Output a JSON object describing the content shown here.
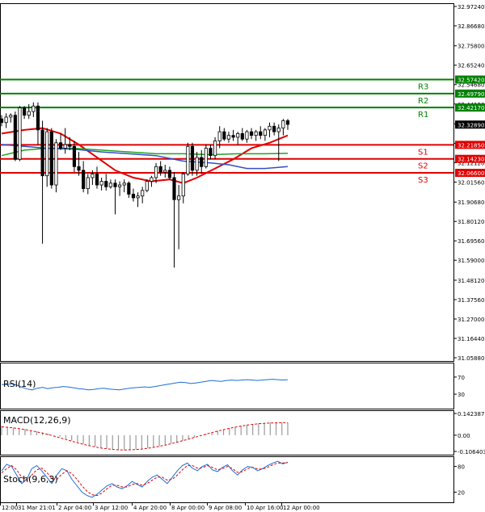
{
  "chart_data": {
    "type": "candlestick",
    "main": {
      "y_ticks": [
        "32.97240",
        "32.86680",
        "32.75800",
        "32.65240",
        "32.54680",
        "32.44120",
        "32.33240",
        "32.22680",
        "32.12120",
        "32.01560",
        "31.90680",
        "31.80120",
        "31.69560",
        "31.59000",
        "31.48120",
        "31.37560",
        "31.27000",
        "31.16440",
        "31.05880"
      ],
      "ylim": [
        31.0588,
        32.9724
      ],
      "x_labels": [
        "12:00",
        "31 Mar 21:01",
        "2 Apr 04:00",
        "3 Apr 12:00",
        "4 Apr 20:00",
        "8 Apr 00:00",
        "9 Apr 08:00",
        "10 Apr 16:00",
        "12 Apr 00:00"
      ],
      "current_price": {
        "value": 32.3289,
        "label": "32.32890",
        "color": "#000000"
      },
      "levels": [
        {
          "name": "R3",
          "value": 32.5742,
          "label": "32.57420",
          "color": "#008000"
        },
        {
          "name": "R2",
          "value": 32.4979,
          "label": "32.49790",
          "color": "#008000"
        },
        {
          "name": "R1",
          "value": 32.4217,
          "label": "32.42170",
          "color": "#008000"
        },
        {
          "name": "S1",
          "value": 32.2185,
          "label": "32.21850",
          "color": "#e00000"
        },
        {
          "name": "S2",
          "value": 32.1423,
          "label": "32.14230",
          "color": "#e00000"
        },
        {
          "name": "S3",
          "value": 32.066,
          "label": "32.06600",
          "color": "#e00000"
        }
      ],
      "candles": [
        {
          "o": 32.36,
          "h": 32.38,
          "l": 32.32,
          "c": 32.34
        },
        {
          "o": 32.34,
          "h": 32.39,
          "l": 32.31,
          "c": 32.37
        },
        {
          "o": 32.37,
          "h": 32.39,
          "l": 32.34,
          "c": 32.38
        },
        {
          "o": 32.38,
          "h": 32.4,
          "l": 32.13,
          "c": 32.14
        },
        {
          "o": 32.14,
          "h": 32.43,
          "l": 32.13,
          "c": 32.42
        },
        {
          "o": 32.42,
          "h": 32.43,
          "l": 32.36,
          "c": 32.38
        },
        {
          "o": 32.38,
          "h": 32.44,
          "l": 32.36,
          "c": 32.4
        },
        {
          "o": 32.4,
          "h": 32.45,
          "l": 32.37,
          "c": 32.43
        },
        {
          "o": 32.43,
          "h": 32.45,
          "l": 32.22,
          "c": 32.3
        },
        {
          "o": 32.3,
          "h": 32.35,
          "l": 31.68,
          "c": 32.05
        },
        {
          "o": 32.05,
          "h": 32.31,
          "l": 31.99,
          "c": 32.29
        },
        {
          "o": 32.29,
          "h": 32.31,
          "l": 31.98,
          "c": 32.0
        },
        {
          "o": 32.0,
          "h": 32.25,
          "l": 31.96,
          "c": 32.23
        },
        {
          "o": 32.23,
          "h": 32.28,
          "l": 32.19,
          "c": 32.2
        },
        {
          "o": 32.2,
          "h": 32.31,
          "l": 32.17,
          "c": 32.22
        },
        {
          "o": 32.22,
          "h": 32.26,
          "l": 32.19,
          "c": 32.21
        },
        {
          "o": 32.21,
          "h": 32.24,
          "l": 32.07,
          "c": 32.1
        },
        {
          "o": 32.1,
          "h": 32.18,
          "l": 32.05,
          "c": 32.08
        },
        {
          "o": 32.08,
          "h": 32.13,
          "l": 31.96,
          "c": 31.98
        },
        {
          "o": 31.98,
          "h": 32.06,
          "l": 31.95,
          "c": 32.04
        },
        {
          "o": 32.04,
          "h": 32.08,
          "l": 32.0,
          "c": 32.06
        },
        {
          "o": 32.06,
          "h": 32.1,
          "l": 31.98,
          "c": 32.0
        },
        {
          "o": 32.0,
          "h": 32.04,
          "l": 31.97,
          "c": 32.02
        },
        {
          "o": 32.02,
          "h": 32.06,
          "l": 31.97,
          "c": 31.99
        },
        {
          "o": 31.99,
          "h": 32.03,
          "l": 31.98,
          "c": 32.01
        },
        {
          "o": 32.01,
          "h": 32.03,
          "l": 31.84,
          "c": 31.99
        },
        {
          "o": 31.99,
          "h": 32.02,
          "l": 31.94,
          "c": 32.0
        },
        {
          "o": 32.0,
          "h": 32.03,
          "l": 31.96,
          "c": 32.01
        },
        {
          "o": 32.01,
          "h": 32.02,
          "l": 31.93,
          "c": 31.95
        },
        {
          "o": 31.95,
          "h": 31.98,
          "l": 31.91,
          "c": 31.93
        },
        {
          "o": 31.93,
          "h": 31.96,
          "l": 31.88,
          "c": 31.94
        },
        {
          "o": 31.94,
          "h": 31.99,
          "l": 31.9,
          "c": 31.97
        },
        {
          "o": 31.97,
          "h": 32.03,
          "l": 31.96,
          "c": 32.02
        },
        {
          "o": 32.02,
          "h": 32.05,
          "l": 31.99,
          "c": 32.04
        },
        {
          "o": 32.04,
          "h": 32.12,
          "l": 32.01,
          "c": 32.1
        },
        {
          "o": 32.1,
          "h": 32.13,
          "l": 32.05,
          "c": 32.07
        },
        {
          "o": 32.07,
          "h": 32.11,
          "l": 32.04,
          "c": 32.08
        },
        {
          "o": 32.08,
          "h": 32.1,
          "l": 32.03,
          "c": 32.04
        },
        {
          "o": 32.04,
          "h": 32.07,
          "l": 31.55,
          "c": 31.92
        },
        {
          "o": 31.92,
          "h": 32.0,
          "l": 31.65,
          "c": 31.94
        },
        {
          "o": 31.94,
          "h": 32.07,
          "l": 31.9,
          "c": 32.06
        },
        {
          "o": 32.06,
          "h": 32.23,
          "l": 32.05,
          "c": 32.21
        },
        {
          "o": 32.21,
          "h": 32.23,
          "l": 32.05,
          "c": 32.08
        },
        {
          "o": 32.08,
          "h": 32.18,
          "l": 32.05,
          "c": 32.15
        },
        {
          "o": 32.15,
          "h": 32.19,
          "l": 32.06,
          "c": 32.1
        },
        {
          "o": 32.1,
          "h": 32.22,
          "l": 32.09,
          "c": 32.2
        },
        {
          "o": 32.2,
          "h": 32.22,
          "l": 32.14,
          "c": 32.16
        },
        {
          "o": 32.16,
          "h": 32.26,
          "l": 32.14,
          "c": 32.24
        },
        {
          "o": 32.24,
          "h": 32.32,
          "l": 32.2,
          "c": 32.29
        },
        {
          "o": 32.29,
          "h": 32.31,
          "l": 32.24,
          "c": 32.25
        },
        {
          "o": 32.25,
          "h": 32.29,
          "l": 32.23,
          "c": 32.27
        },
        {
          "o": 32.27,
          "h": 32.3,
          "l": 32.24,
          "c": 32.26
        },
        {
          "o": 32.26,
          "h": 32.29,
          "l": 32.22,
          "c": 32.28
        },
        {
          "o": 32.28,
          "h": 32.31,
          "l": 32.24,
          "c": 32.25
        },
        {
          "o": 32.25,
          "h": 32.3,
          "l": 32.23,
          "c": 32.29
        },
        {
          "o": 32.29,
          "h": 32.31,
          "l": 32.25,
          "c": 32.27
        },
        {
          "o": 32.27,
          "h": 32.3,
          "l": 32.24,
          "c": 32.29
        },
        {
          "o": 32.29,
          "h": 32.32,
          "l": 32.25,
          "c": 32.27
        },
        {
          "o": 32.27,
          "h": 32.31,
          "l": 32.24,
          "c": 32.3
        },
        {
          "o": 32.3,
          "h": 32.34,
          "l": 32.26,
          "c": 32.32
        },
        {
          "o": 32.32,
          "h": 32.34,
          "l": 32.27,
          "c": 32.29
        },
        {
          "o": 32.29,
          "h": 32.33,
          "l": 32.13,
          "c": 32.31
        },
        {
          "o": 32.31,
          "h": 32.36,
          "l": 32.27,
          "c": 32.35
        },
        {
          "o": 32.35,
          "h": 32.36,
          "l": 32.3,
          "c": 32.33
        }
      ],
      "moving_averages": [
        {
          "name": "red-ma",
          "color": "#e00000",
          "points": [
            [
              0,
              32.28
            ],
            [
              5,
              32.3
            ],
            [
              9,
              32.31
            ],
            [
              13,
              32.28
            ],
            [
              17,
              32.22
            ],
            [
              21,
              32.15
            ],
            [
              25,
              32.08
            ],
            [
              29,
              32.04
            ],
            [
              33,
              32.02
            ],
            [
              37,
              32.03
            ],
            [
              40,
              32.01
            ],
            [
              43,
              32.04
            ],
            [
              47,
              32.09
            ],
            [
              51,
              32.14
            ],
            [
              55,
              32.2
            ],
            [
              59,
              32.23
            ],
            [
              62,
              32.26
            ],
            [
              63,
              32.27
            ]
          ]
        },
        {
          "name": "green-ma",
          "color": "#22a022",
          "points": [
            [
              0,
              32.16
            ],
            [
              5,
              32.19
            ],
            [
              10,
              32.2
            ],
            [
              16,
              32.2
            ],
            [
              22,
              32.19
            ],
            [
              28,
              32.18
            ],
            [
              34,
              32.17
            ],
            [
              40,
              32.17
            ],
            [
              46,
              32.165
            ],
            [
              52,
              32.17
            ],
            [
              58,
              32.17
            ],
            [
              63,
              32.172
            ]
          ]
        },
        {
          "name": "blue-ma",
          "color": "#3050c8",
          "points": [
            [
              0,
              32.22
            ],
            [
              5,
              32.21
            ],
            [
              10,
              32.2
            ],
            [
              16,
              32.195
            ],
            [
              22,
              32.18
            ],
            [
              28,
              32.17
            ],
            [
              34,
              32.16
            ],
            [
              40,
              32.13
            ],
            [
              46,
              32.12
            ],
            [
              50,
              32.11
            ],
            [
              54,
              32.09
            ],
            [
              58,
              32.09
            ],
            [
              63,
              32.1
            ]
          ]
        }
      ]
    },
    "rsi": {
      "label": "RSI(14)",
      "y_ticks": [
        "70",
        "30"
      ],
      "color": "#1e6ed6",
      "values": [
        52,
        53,
        54,
        51,
        46,
        42,
        40,
        44,
        46,
        43,
        45,
        46,
        48,
        47,
        45,
        43,
        42,
        40,
        41,
        43,
        44,
        42,
        41,
        40,
        42,
        44,
        45,
        46,
        47,
        46,
        48,
        50,
        52,
        54,
        56,
        58,
        57,
        55,
        56,
        58,
        60,
        62,
        61,
        60,
        62,
        63,
        62,
        63,
        64,
        63,
        62,
        63,
        64,
        65,
        64,
        63,
        64
      ]
    },
    "macd": {
      "label": "MACD(12,26,9)",
      "y_ticks": [
        "0.142387",
        "0.00",
        "-0.106403"
      ],
      "ylim": [
        -0.106403,
        0.142387
      ],
      "signal_color": "#e00000",
      "histogram": [
        0.06,
        0.055,
        0.05,
        0.045,
        0.04,
        0.032,
        0.025,
        0.018,
        0.01,
        0.0,
        -0.01,
        -0.022,
        -0.035,
        -0.046,
        -0.056,
        -0.066,
        -0.075,
        -0.082,
        -0.088,
        -0.092,
        -0.095,
        -0.096,
        -0.095,
        -0.093,
        -0.089,
        -0.084,
        -0.078,
        -0.071,
        -0.063,
        -0.054,
        -0.045,
        -0.035,
        -0.025,
        -0.014,
        -0.003,
        0.008,
        0.018,
        0.028,
        0.038,
        0.047,
        0.055,
        0.062,
        0.068,
        0.074,
        0.078,
        0.081,
        0.083,
        0.084,
        0.084,
        0.083
      ],
      "signal": [
        0.055,
        0.052,
        0.048,
        0.043,
        0.037,
        0.03,
        0.022,
        0.013,
        0.004,
        -0.006,
        -0.017,
        -0.028,
        -0.039,
        -0.05,
        -0.06,
        -0.069,
        -0.077,
        -0.084,
        -0.089,
        -0.093,
        -0.096,
        -0.097,
        -0.096,
        -0.094,
        -0.091,
        -0.086,
        -0.08,
        -0.073,
        -0.065,
        -0.056,
        -0.046,
        -0.036,
        -0.026,
        -0.015,
        -0.004,
        0.007,
        0.017,
        0.027,
        0.036,
        0.045,
        0.053,
        0.06,
        0.066,
        0.071,
        0.075,
        0.078,
        0.08,
        0.081,
        0.082,
        0.082
      ]
    },
    "stoch": {
      "label": "Stoch(9,6,3)",
      "y_ticks": [
        "80",
        "20"
      ],
      "main_color": "#1e6ed6",
      "signal_color": "#e00000",
      "main": [
        70,
        85,
        80,
        60,
        40,
        50,
        75,
        82,
        70,
        55,
        40,
        60,
        75,
        70,
        50,
        35,
        20,
        12,
        8,
        15,
        25,
        35,
        40,
        32,
        28,
        35,
        45,
        38,
        32,
        45,
        55,
        60,
        50,
        40,
        55,
        70,
        82,
        88,
        76,
        70,
        80,
        85,
        72,
        68,
        78,
        84,
        70,
        60,
        72,
        80,
        78,
        70,
        75,
        82,
        88,
        92,
        86,
        90
      ],
      "signal": [
        65,
        75,
        82,
        72,
        55,
        48,
        60,
        72,
        76,
        66,
        52,
        50,
        62,
        70,
        63,
        50,
        35,
        22,
        14,
        12,
        18,
        28,
        36,
        36,
        32,
        32,
        38,
        40,
        36,
        40,
        48,
        55,
        55,
        48,
        50,
        60,
        72,
        82,
        82,
        76,
        77,
        82,
        78,
        72,
        75,
        80,
        75,
        66,
        68,
        75,
        78,
        74,
        74,
        78,
        84,
        88,
        88,
        89
      ]
    }
  }
}
